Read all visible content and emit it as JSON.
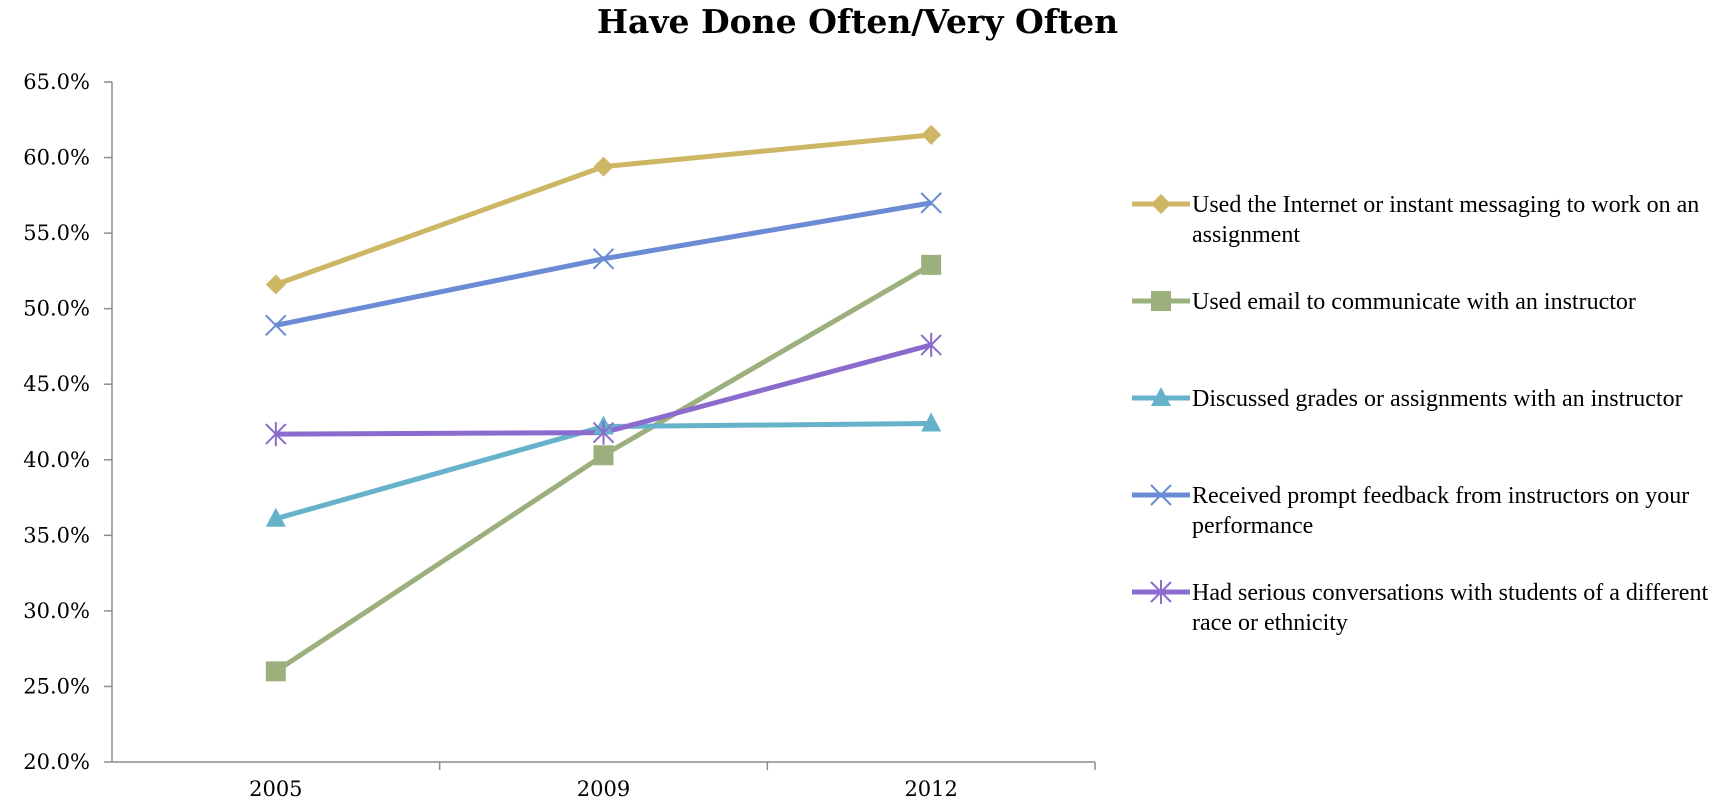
{
  "chart_data": {
    "type": "line",
    "title": "Have Done Often/Very Often",
    "categories": [
      "2005",
      "2009",
      "2012"
    ],
    "ylim": [
      20,
      65
    ],
    "y_ticks": [
      "20.0%",
      "25.0%",
      "30.0%",
      "35.0%",
      "40.0%",
      "45.0%",
      "50.0%",
      "55.0%",
      "60.0%",
      "65.0%"
    ],
    "y_tick_values": [
      20,
      25,
      30,
      35,
      40,
      45,
      50,
      55,
      60,
      65
    ],
    "grid": false,
    "legend_position": "right",
    "series": [
      {
        "name": "Used the Internet or instant messaging to work on an assignment",
        "values": [
          51.6,
          59.4,
          61.5
        ],
        "color": "#CDB664",
        "marker": "diamond"
      },
      {
        "name": "Used email to communicate with an instructor",
        "values": [
          26.0,
          40.3,
          52.9
        ],
        "color": "#9BB07C",
        "marker": "square"
      },
      {
        "name": "Discussed grades or assignments with an instructor",
        "values": [
          36.1,
          42.2,
          42.4
        ],
        "color": "#66B2CA",
        "marker": "triangle"
      },
      {
        "name": "Received prompt feedback from instructors on your performance",
        "values": [
          48.9,
          53.3,
          57.0
        ],
        "color": "#6B8CD5",
        "marker": "x"
      },
      {
        "name": "Had serious conversations with students of a different race or ethnicity",
        "values": [
          41.7,
          41.8,
          47.6
        ],
        "color": "#8B6BCE",
        "marker": "star"
      }
    ]
  }
}
